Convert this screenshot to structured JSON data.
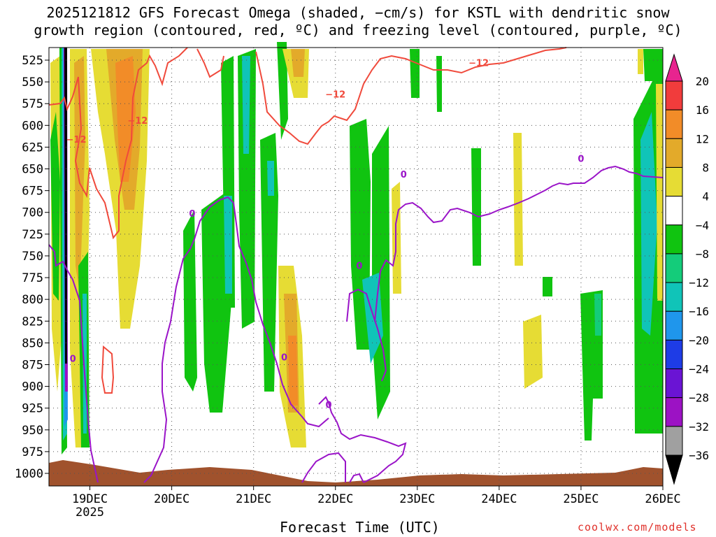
{
  "title_line1": "2025121812 GFS Forecast Omega (shaded, −cm/s) for KSTL with dendritic snow",
  "title_line2": "growth region (contoured, red, ºC) and freezing level (contoured, purple, ºC)",
  "xlabel": "Forecast Time (UTC)",
  "credit": "coolwx.com/models",
  "chart_data": {
    "type": "heatmap",
    "title": "2025121812 GFS Forecast Omega (shaded, −cm/s) for KSTL with dendritic snow growth region (contoured, red, ºC) and freezing level (contoured, purple, ºC)",
    "xlabel": "Forecast Time (UTC)",
    "x_ticks": [
      "19DEC",
      "20DEC",
      "21DEC",
      "22DEC",
      "23DEC",
      "24DEC",
      "25DEC",
      "26DEC"
    ],
    "x_year_label": "2025",
    "x_range": [
      "2025-12-18T12:00",
      "2025-12-26T00:00"
    ],
    "y_ticks": [
      525,
      550,
      575,
      600,
      625,
      650,
      675,
      700,
      725,
      750,
      775,
      800,
      825,
      850,
      875,
      900,
      925,
      950,
      975,
      1000
    ],
    "y_range": [
      1015,
      512
    ],
    "y_inverted": true,
    "grid": true,
    "colorbar": {
      "labels": [
        "20",
        "16",
        "12",
        "8",
        "4",
        "−4",
        "−8",
        "−12",
        "−16",
        "−20",
        "−24",
        "−28",
        "−32",
        "−36"
      ],
      "bins": [
        {
          "range": ">20",
          "color": "#e8248f"
        },
        {
          "range": "16-20",
          "color": "#f13c3c"
        },
        {
          "range": "12-16",
          "color": "#f28c28"
        },
        {
          "range": "8-12",
          "color": "#e3aa2a"
        },
        {
          "range": "4-8",
          "color": "#e6dc34"
        },
        {
          "range": "-4-4",
          "color": "#ffffff"
        },
        {
          "range": "-8--4",
          "color": "#10c410"
        },
        {
          "range": "-12--8",
          "color": "#14cc7a"
        },
        {
          "range": "-16--12",
          "color": "#10c4b8"
        },
        {
          "range": "-20--16",
          "color": "#1f96ec"
        },
        {
          "range": "-24--20",
          "color": "#1e3ce6"
        },
        {
          "range": "-28--24",
          "color": "#6a14d4"
        },
        {
          "range": "-32--28",
          "color": "#9c12c4"
        },
        {
          "range": "-36--32",
          "color": "#a0a0a0"
        },
        {
          "range": "<-36",
          "color": "#000000"
        }
      ]
    },
    "contours": [
      {
        "name": "-12",
        "label": "−12",
        "color": "#f04a3c",
        "label_positions": [
          [
            "2025-12-18T20:00",
            620
          ],
          [
            "2025-12-19T14:00",
            598
          ],
          [
            "2025-12-22T00:00",
            568
          ],
          [
            "2025-12-23T18:00",
            532
          ]
        ]
      },
      {
        "name": "0",
        "label": "0",
        "color": "#9a14c8",
        "label_positions": [
          [
            "2025-12-18T19:00",
            872
          ],
          [
            "2025-12-20T06:00",
            705
          ],
          [
            "2025-12-21T09:00",
            870
          ],
          [
            "2025-12-21T22:00",
            925
          ],
          [
            "2025-12-22T07:00",
            765
          ],
          [
            "2025-12-22T20:00",
            660
          ],
          [
            "2025-12-25T00:00",
            642
          ]
        ]
      }
    ],
    "terrain": {
      "color": "#a0522d",
      "surface_pressure_hPa_range": [
        985,
        1005
      ]
    }
  }
}
